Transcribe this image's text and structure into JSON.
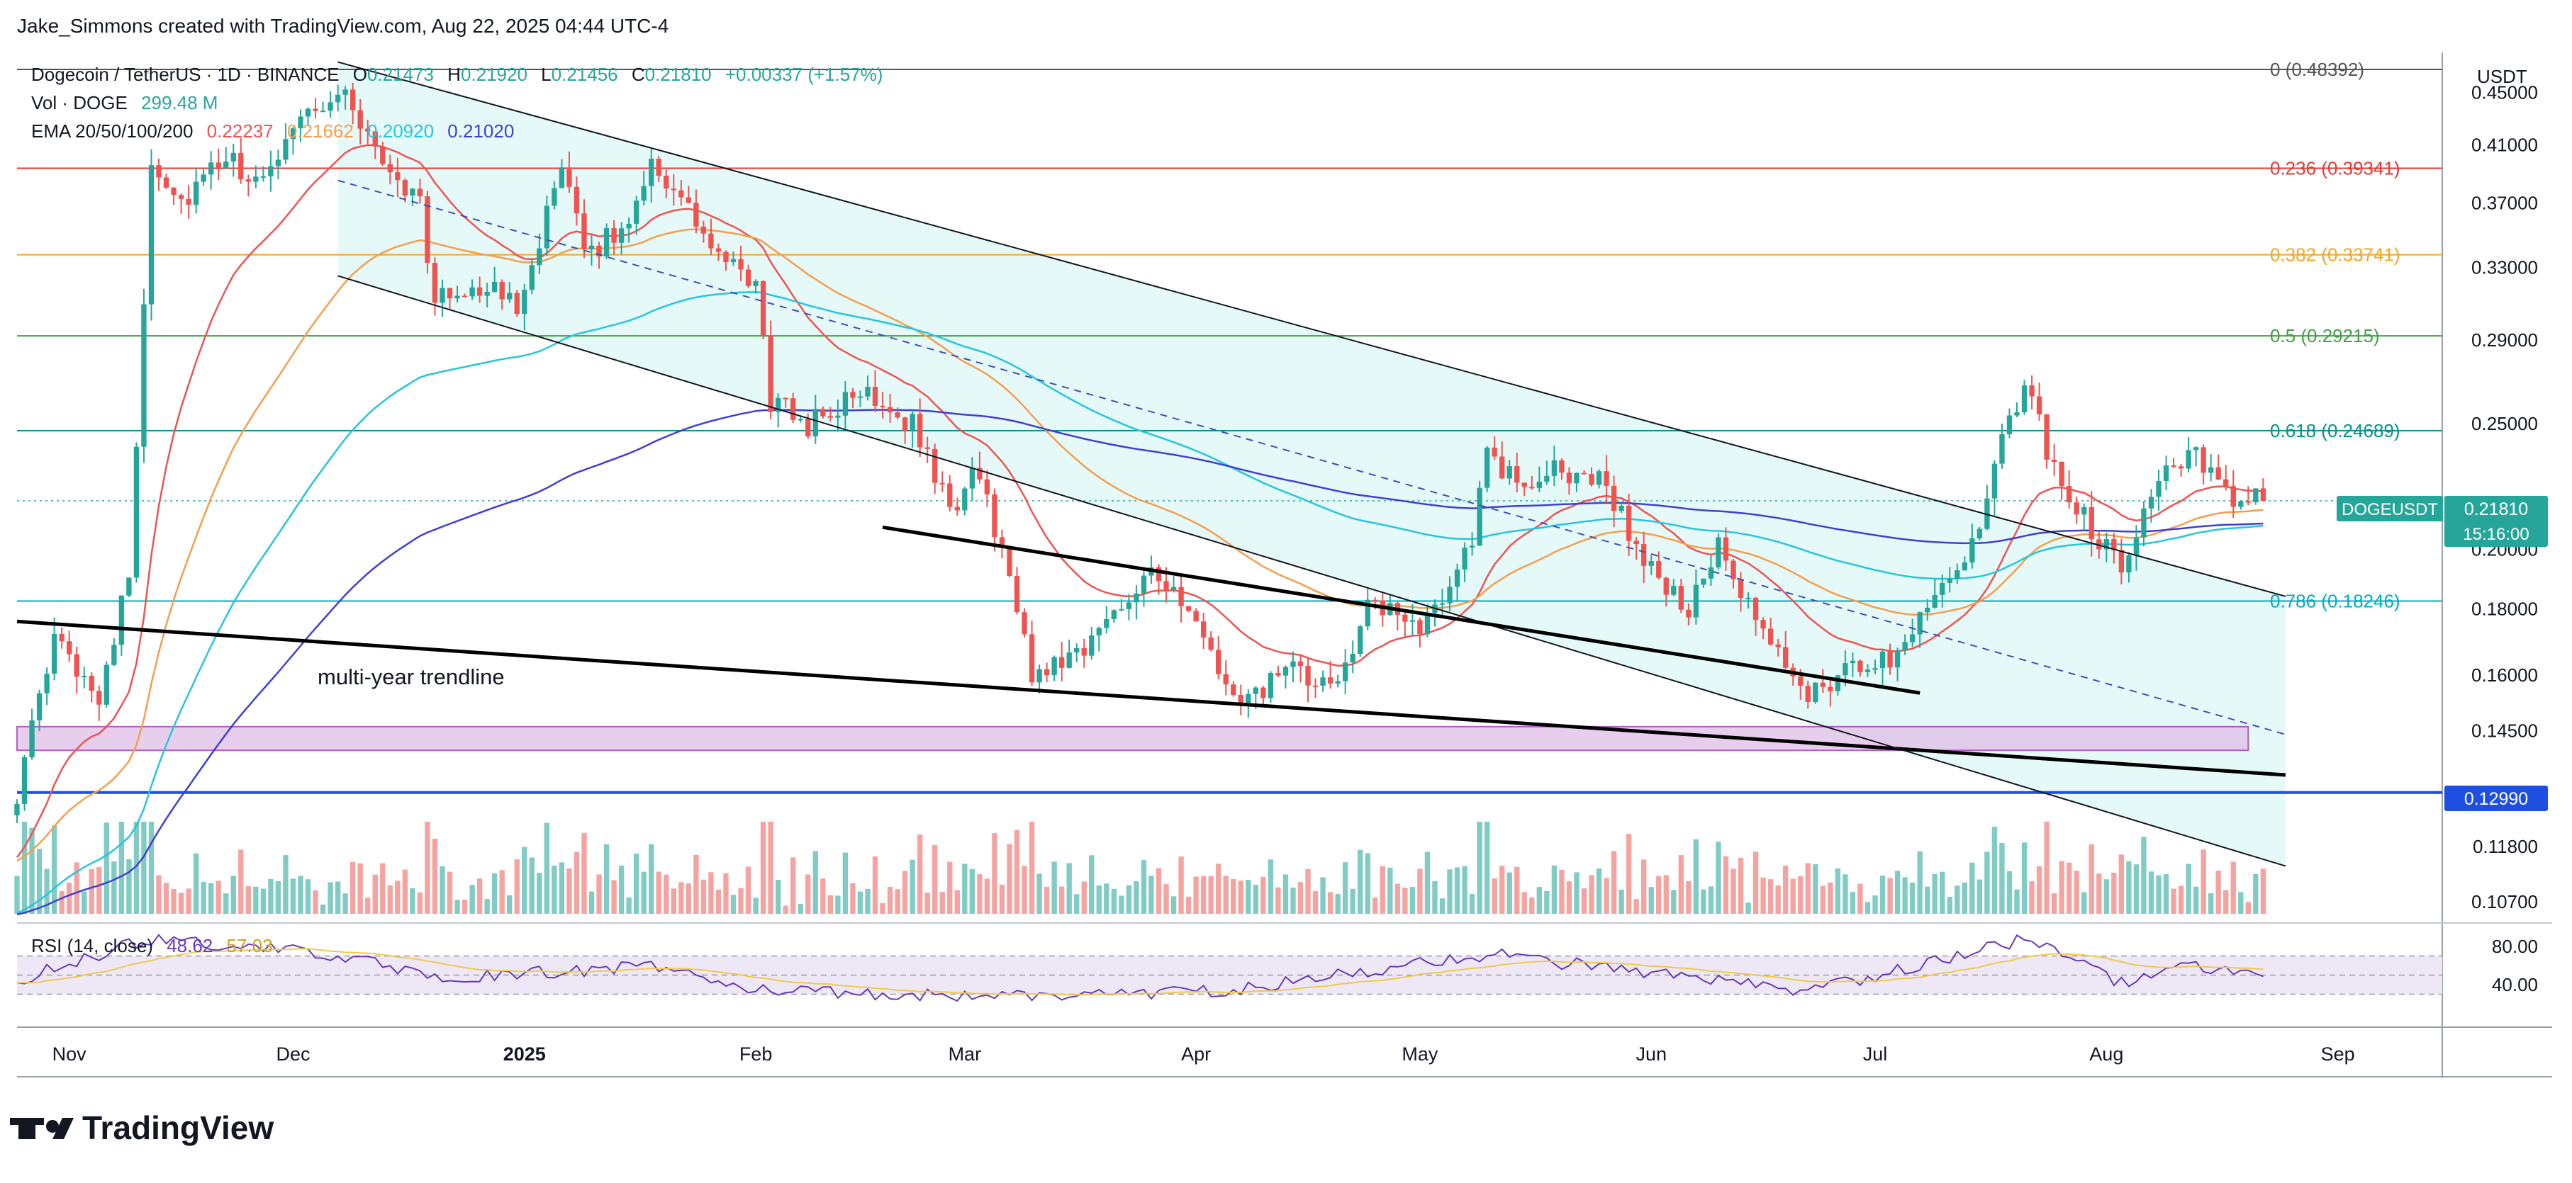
{
  "header": {
    "created_by": "Jake_Simmons created with TradingView.com, Aug 22, 2025 04:44 UTC-4"
  },
  "legend": {
    "symbol": "Dogecoin / TetherUS · 1D · BINANCE",
    "ohlc": [
      {
        "label": "O",
        "value": "0.21473"
      },
      {
        "label": "H",
        "value": "0.21920"
      },
      {
        "label": "L",
        "value": "0.21456"
      },
      {
        "label": "C",
        "value": "0.21810"
      }
    ],
    "change": "+0.00337 (+1.57%)",
    "vol_label": "Vol · DOGE",
    "vol_value": "299.48 M",
    "ema_label": "EMA 20/50/100/200",
    "ema_values": [
      "0.22237",
      "0.21662",
      "0.20920",
      "0.21020"
    ],
    "rsi_label": "RSI (14, close)",
    "rsi_values": [
      "48.62",
      "57.03"
    ]
  },
  "colors": {
    "up": "#26a69a",
    "down": "#ef5350",
    "ema20": "#ef5350",
    "ema50": "#f59e4c",
    "ema100": "#26c6da",
    "ema200": "#3f3fd4",
    "fib0": "#555555",
    "fib236": "#e53935",
    "fib382": "#f5a623",
    "fib5": "#43a047",
    "fib618": "#009688",
    "fib786": "#00acc1",
    "support": "#1e4fe0",
    "zone_fill": "#e1bee7",
    "zone_stroke": "#9c27b0",
    "channel_fill": "#e0f7f7",
    "rsi_line": "#673ab7",
    "rsi_ma": "#f2c94c",
    "rsi_band": "#ede7f6"
  },
  "price_axis": {
    "unit": "USDT",
    "ticks": [
      "0.45000",
      "0.41000",
      "0.37000",
      "0.33000",
      "0.29000",
      "0.25000",
      "0.20000",
      "0.18000",
      "0.16000",
      "0.14500",
      "0.11800",
      "0.10700"
    ],
    "last_symbol": "DOGEUSDT",
    "last_price": "0.21810",
    "countdown": "15:16:00",
    "support_price": "0.12990"
  },
  "rsi_axis": {
    "ticks": [
      "80.00",
      "40.00"
    ]
  },
  "time_axis": {
    "labels": [
      "Nov",
      "Dec",
      "2025",
      "Feb",
      "Mar",
      "Apr",
      "May",
      "Jun",
      "Jul",
      "Aug",
      "Sep"
    ]
  },
  "annotations": {
    "trendline": "multi-year trendline"
  },
  "branding": {
    "logo": "TradingView"
  },
  "chart_data": {
    "type": "candlestick",
    "title": "Dogecoin / TetherUS · 1D · BINANCE",
    "y_scale": "log",
    "ylim": [
      0.105,
      0.47
    ],
    "x_range": [
      "2024-10-25",
      "2025-09-15"
    ],
    "fib_levels": [
      {
        "label": "0 (0.48392)",
        "value": 0.48392
      },
      {
        "label": "0.236 (0.39341)",
        "value": 0.39341
      },
      {
        "label": "0.382 (0.33741)",
        "value": 0.33741
      },
      {
        "label": "0.5 (0.29215)",
        "value": 0.29215
      },
      {
        "label": "0.618 (0.24689)",
        "value": 0.24689
      },
      {
        "label": "0.786 (0.18246)",
        "value": 0.18246
      }
    ],
    "support_level": 0.1299,
    "demand_zone": {
      "from": "2024-10-25",
      "to": "2025-08-20",
      "low": 0.14,
      "high": 0.146
    },
    "trendlines": [
      {
        "name": "multi-year trendline",
        "points": [
          [
            "2024-10-25",
            0.176
          ],
          [
            "2025-08-25",
            0.134
          ]
        ]
      },
      {
        "name": "channel-upper",
        "points": [
          [
            "2024-12-07",
            0.475
          ],
          [
            "2025-08-25",
            0.184
          ]
        ]
      },
      {
        "name": "channel-lower",
        "points": [
          [
            "2024-12-07",
            0.325
          ],
          [
            "2025-08-25",
            0.114
          ]
        ]
      },
      {
        "name": "channel-mid",
        "points": [
          [
            "2024-12-07",
            0.385
          ],
          [
            "2025-08-25",
            0.144
          ]
        ]
      },
      {
        "name": "inner-support",
        "points": [
          [
            "2025-02-18",
            0.208
          ],
          [
            "2025-07-07",
            0.155
          ]
        ]
      }
    ],
    "anchors": [
      [
        "2024-10-25",
        0.13
      ],
      [
        "2024-10-30",
        0.17
      ],
      [
        "2024-11-05",
        0.155
      ],
      [
        "2024-11-09",
        0.19
      ],
      [
        "2024-11-12",
        0.4
      ],
      [
        "2024-11-16",
        0.37
      ],
      [
        "2024-11-22",
        0.4
      ],
      [
        "2024-11-27",
        0.38
      ],
      [
        "2024-12-01",
        0.43
      ],
      [
        "2024-12-08",
        0.45
      ],
      [
        "2024-12-12",
        0.405
      ],
      [
        "2024-12-18",
        0.37
      ],
      [
        "2024-12-20",
        0.31
      ],
      [
        "2024-12-25",
        0.32
      ],
      [
        "2024-12-31",
        0.31
      ],
      [
        "2025-01-06",
        0.39
      ],
      [
        "2025-01-09",
        0.34
      ],
      [
        "2025-01-14",
        0.35
      ],
      [
        "2025-01-18",
        0.4
      ],
      [
        "2025-01-22",
        0.37
      ],
      [
        "2025-01-28",
        0.33
      ],
      [
        "2025-02-01",
        0.32
      ],
      [
        "2025-02-03",
        0.26
      ],
      [
        "2025-02-08",
        0.25
      ],
      [
        "2025-02-16",
        0.265
      ],
      [
        "2025-02-22",
        0.25
      ],
      [
        "2025-02-28",
        0.21
      ],
      [
        "2025-03-02",
        0.235
      ],
      [
        "2025-03-06",
        0.2
      ],
      [
        "2025-03-10",
        0.16
      ],
      [
        "2025-03-18",
        0.17
      ],
      [
        "2025-03-26",
        0.195
      ],
      [
        "2025-04-02",
        0.17
      ],
      [
        "2025-04-07",
        0.15
      ],
      [
        "2025-04-13",
        0.162
      ],
      [
        "2025-04-19",
        0.155
      ],
      [
        "2025-04-24",
        0.18
      ],
      [
        "2025-05-02",
        0.175
      ],
      [
        "2025-05-08",
        0.205
      ],
      [
        "2025-05-10",
        0.235
      ],
      [
        "2025-05-14",
        0.225
      ],
      [
        "2025-05-20",
        0.23
      ],
      [
        "2025-05-26",
        0.225
      ],
      [
        "2025-05-31",
        0.195
      ],
      [
        "2025-06-06",
        0.18
      ],
      [
        "2025-06-10",
        0.2
      ],
      [
        "2025-06-15",
        0.175
      ],
      [
        "2025-06-22",
        0.155
      ],
      [
        "2025-06-26",
        0.16
      ],
      [
        "2025-07-03",
        0.165
      ],
      [
        "2025-07-10",
        0.19
      ],
      [
        "2025-07-14",
        0.2
      ],
      [
        "2025-07-18",
        0.24
      ],
      [
        "2025-07-21",
        0.27
      ],
      [
        "2025-07-25",
        0.23
      ],
      [
        "2025-08-01",
        0.2
      ],
      [
        "2025-08-03",
        0.195
      ],
      [
        "2025-08-08",
        0.23
      ],
      [
        "2025-08-13",
        0.235
      ],
      [
        "2025-08-17",
        0.22
      ],
      [
        "2025-08-22",
        0.218
      ]
    ],
    "rsi_anchors": [
      [
        "2024-10-25",
        45
      ],
      [
        "2024-11-12",
        88
      ],
      [
        "2024-12-08",
        70
      ],
      [
        "2024-12-20",
        45
      ],
      [
        "2025-01-18",
        60
      ],
      [
        "2025-02-03",
        32
      ],
      [
        "2025-03-10",
        28
      ],
      [
        "2025-04-07",
        35
      ],
      [
        "2025-05-10",
        72
      ],
      [
        "2025-06-22",
        32
      ],
      [
        "2025-07-21",
        88
      ],
      [
        "2025-08-03",
        42
      ],
      [
        "2025-08-13",
        60
      ],
      [
        "2025-08-22",
        48.62
      ]
    ]
  }
}
